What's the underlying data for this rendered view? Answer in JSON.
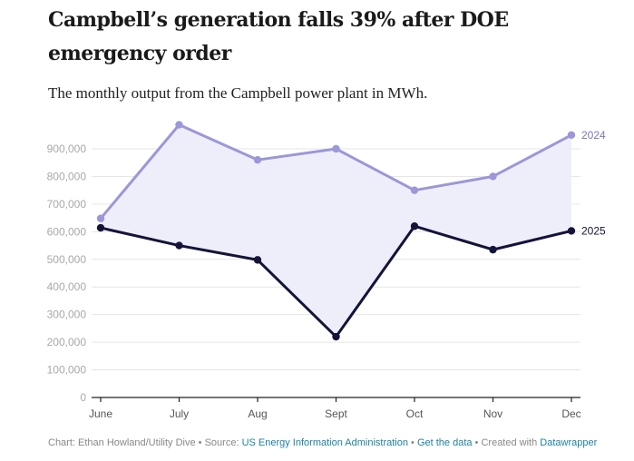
{
  "header": {
    "title": "Campbell’s generation falls 39% after DOE emergency order",
    "subtitle": "The monthly output from the Campbell power plant in MWh."
  },
  "footer": {
    "chart_prefix": "Chart: Ethan Howland/Utility Dive",
    "sep1": " • Source: ",
    "source_link": "US Energy Information Administration",
    "sep2": " • ",
    "data_link": "Get the data",
    "sep3": " • Created with ",
    "tool_link": "Datawrapper"
  },
  "colors": {
    "series_2024": "#9b97d8",
    "series_2025": "#14133a",
    "area_fill": "#eeeefa",
    "gridline": "#e6e6e6",
    "axis": "#222222",
    "link": "#1d81a2"
  },
  "chart_data": {
    "type": "line",
    "title": "Campbell’s generation falls 39% after DOE emergency order",
    "subtitle": "The monthly output from the Campbell power plant in MWh.",
    "xlabel": "",
    "ylabel": "",
    "categories": [
      "June",
      "July",
      "Aug",
      "Sept",
      "Oct",
      "Nov",
      "Dec"
    ],
    "ylim": [
      0,
      1000000
    ],
    "yticks": [
      0,
      100000,
      200000,
      300000,
      400000,
      500000,
      600000,
      700000,
      800000,
      900000
    ],
    "ytick_labels": [
      "0",
      "100,000",
      "200,000",
      "300,000",
      "400,000",
      "500,000",
      "600,000",
      "700,000",
      "800,000",
      "900,000"
    ],
    "grid": true,
    "legend": "direct labels at line ends (right)",
    "area_between_series": true,
    "series": [
      {
        "name": "2024",
        "values": [
          648000,
          987000,
          860000,
          900000,
          750000,
          800000,
          950000
        ]
      },
      {
        "name": "2025",
        "values": [
          614000,
          550000,
          498000,
          220000,
          620000,
          535000,
          603000
        ]
      }
    ]
  }
}
